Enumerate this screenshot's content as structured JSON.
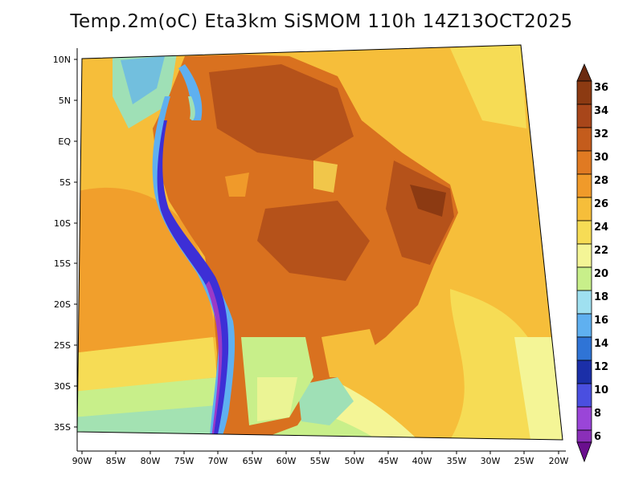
{
  "title": "Temp.2m(oC) Eta3km SiSMOM 110h 14Z13OCT2025",
  "map": {
    "lat_labels": [
      "10N",
      "5N",
      "EQ",
      "5S",
      "10S",
      "15S",
      "20S",
      "25S",
      "30S",
      "35S"
    ],
    "lon_labels": [
      "90W",
      "85W",
      "80W",
      "75W",
      "70W",
      "65W",
      "60W",
      "55W",
      "50W",
      "45W",
      "40W",
      "35W",
      "30W",
      "25W",
      "20W"
    ]
  },
  "colorbar": {
    "labels": [
      "36",
      "34",
      "32",
      "30",
      "28",
      "26",
      "24",
      "22",
      "20",
      "18",
      "16",
      "14",
      "12",
      "10",
      "8",
      "6"
    ],
    "colors": [
      "#6b2a10",
      "#8c3a12",
      "#b5521a",
      "#d9711f",
      "#f09a2a",
      "#f6be3a",
      "#f6dc55",
      "#f4f596",
      "#c8ef8a",
      "#9fe0b6",
      "#5fb0f0",
      "#2f74d6",
      "#1b2fa8",
      "#3d2fd6",
      "#7a45d8",
      "#9a3ac8",
      "#6a0f8e"
    ]
  }
}
